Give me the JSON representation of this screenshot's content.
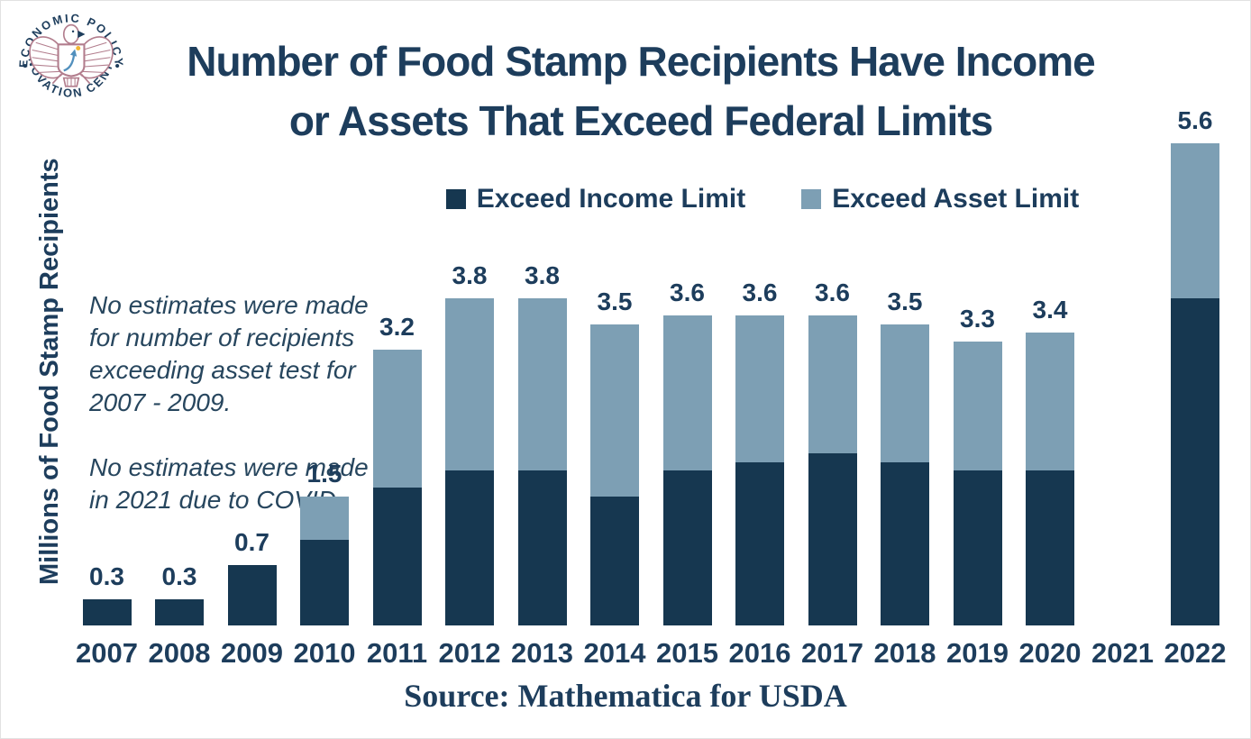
{
  "logo": {
    "arc_top": "ECONOMIC POLICY",
    "arc_bottom": "INNOVATION CENTER"
  },
  "title": {
    "line1": "Number of Food Stamp Recipients Have Income",
    "line2": "or Assets That Exceed Federal Limits"
  },
  "legend": {
    "items": [
      {
        "label": "Exceed Income Limit",
        "color": "#163750"
      },
      {
        "label": "Exceed Asset Limit",
        "color": "#7d9fb4"
      }
    ]
  },
  "y_axis_label": "Millions of Food Stamp Recipients",
  "annotation": {
    "note1": "No estimates were made\nfor number of recipients\nexceeding asset test for\n2007 - 2009.",
    "note2": "No estimates were made\nin 2021 due to COVID."
  },
  "source": "Source: Mathematica for USDA",
  "colors": {
    "text_navy": "#1d3d5c",
    "bar_income": "#163750",
    "bar_asset": "#7d9fb4",
    "logo_rose": "#b27d8d",
    "logo_arrow_blue": "#5290bd",
    "logo_dot_gold": "#f2b632"
  },
  "chart_data": {
    "type": "bar",
    "stacked": true,
    "title": "Number of Food Stamp Recipients Have Income or Assets That Exceed Federal Limits",
    "ylabel": "Millions of Food Stamp Recipients",
    "unit": "millions of recipients",
    "ylim": [
      0,
      6
    ],
    "grid": false,
    "legend_position": "top",
    "categories": [
      "2007",
      "2008",
      "2009",
      "2010",
      "2011",
      "2012",
      "2013",
      "2014",
      "2015",
      "2016",
      "2017",
      "2018",
      "2019",
      "2020",
      "2021",
      "2022"
    ],
    "series": [
      {
        "name": "Exceed Income Limit",
        "color": "#163750",
        "values": [
          0.3,
          0.3,
          0.7,
          1.0,
          1.6,
          1.8,
          1.8,
          1.5,
          1.8,
          1.9,
          2.0,
          1.9,
          1.8,
          1.8,
          null,
          3.8
        ]
      },
      {
        "name": "Exceed Asset Limit",
        "color": "#7d9fb4",
        "values": [
          0,
          0,
          0,
          0.5,
          1.6,
          2.0,
          2.0,
          2.0,
          1.8,
          1.7,
          1.6,
          1.6,
          1.5,
          1.6,
          null,
          1.8
        ]
      }
    ],
    "total_labels": [
      "0.3",
      "0.3",
      "0.7",
      "1.5",
      "3.2",
      "3.8",
      "3.8",
      "3.5",
      "3.6",
      "3.6",
      "3.6",
      "3.5",
      "3.3",
      "3.4",
      "",
      "5.6"
    ]
  }
}
